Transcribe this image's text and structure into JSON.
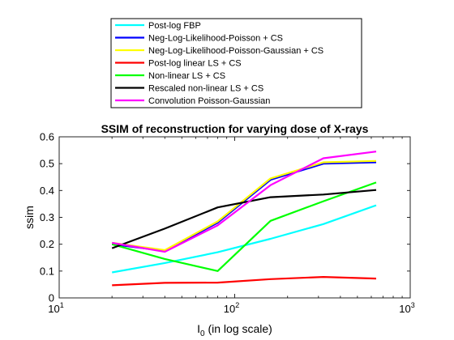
{
  "chart_data": {
    "type": "line",
    "title": "SSIM of reconstruction for varying dose of X-rays",
    "xlabel": "I",
    "xlabel_sub": "0",
    "xlabel_suffix": " (in log scale)",
    "ylabel": "ssim",
    "xscale": "log",
    "xlim": [
      10,
      1000
    ],
    "ylim": [
      0,
      0.6
    ],
    "grid": false,
    "legend_position": "top, outside plot",
    "x_ticks": [
      {
        "value": 10,
        "base": "10",
        "exp": "1"
      },
      {
        "value": 100,
        "base": "10",
        "exp": "2"
      },
      {
        "value": 1000,
        "base": "10",
        "exp": "3"
      }
    ],
    "y_ticks": [
      {
        "value": 0,
        "label": "0"
      },
      {
        "value": 0.1,
        "label": "0.1"
      },
      {
        "value": 0.2,
        "label": "0.2"
      },
      {
        "value": 0.3,
        "label": "0.3"
      },
      {
        "value": 0.4,
        "label": "0.4"
      },
      {
        "value": 0.5,
        "label": "0.5"
      },
      {
        "value": 0.6,
        "label": "0.6"
      }
    ],
    "x": [
      20,
      40,
      80,
      160,
      320,
      640
    ],
    "series": [
      {
        "name": "Post-log FBP",
        "color": "#00ffff",
        "values": [
          0.095,
          0.13,
          0.17,
          0.22,
          0.275,
          0.345
        ]
      },
      {
        "name": "Neg-Log-Likelihood-Poisson + CS",
        "color": "#0000ff",
        "values": [
          0.2,
          0.175,
          0.28,
          0.44,
          0.5,
          0.505
        ]
      },
      {
        "name": "Neg-Log-Likelihood-Poisson-Gaussian + CS",
        "color": "#ffff00",
        "values": [
          0.205,
          0.178,
          0.285,
          0.445,
          0.505,
          0.51
        ]
      },
      {
        "name": "Post-log linear LS + CS",
        "color": "#ff0000",
        "values": [
          0.047,
          0.056,
          0.057,
          0.07,
          0.078,
          0.072
        ]
      },
      {
        "name": "Non-linear LS + CS",
        "color": "#00ff00",
        "values": [
          0.2,
          0.145,
          0.1,
          0.287,
          0.36,
          0.43
        ]
      },
      {
        "name": "Rescaled non-linear LS + CS",
        "color": "#000000",
        "values": [
          0.185,
          0.258,
          0.337,
          0.375,
          0.385,
          0.402
        ]
      },
      {
        "name": "Convolution Poisson-Gaussian",
        "color": "#ff00ff",
        "values": [
          0.205,
          0.172,
          0.27,
          0.42,
          0.52,
          0.545
        ]
      }
    ]
  }
}
